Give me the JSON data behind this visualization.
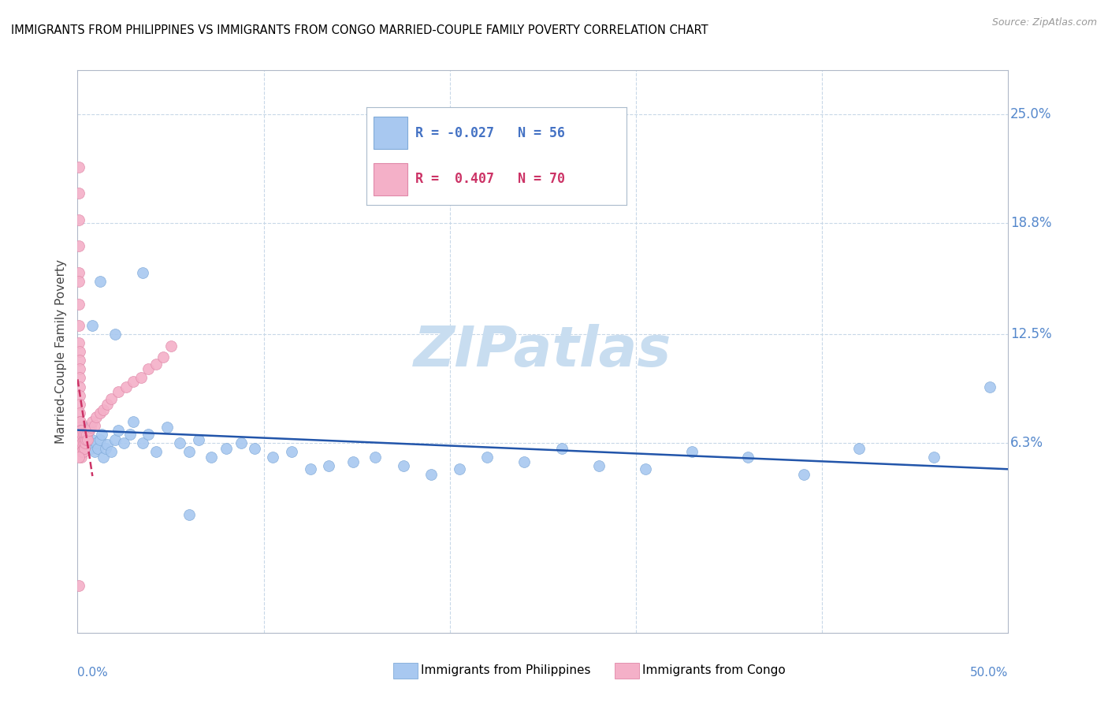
{
  "title": "IMMIGRANTS FROM PHILIPPINES VS IMMIGRANTS FROM CONGO MARRIED-COUPLE FAMILY POVERTY CORRELATION CHART",
  "source": "Source: ZipAtlas.com",
  "ylabel": "Married-Couple Family Poverty",
  "ytick_values": [
    0.063,
    0.125,
    0.188,
    0.25
  ],
  "ytick_labels": [
    "6.3%",
    "12.5%",
    "18.8%",
    "25.0%"
  ],
  "xlim": [
    0.0,
    0.5
  ],
  "ylim": [
    -0.045,
    0.275
  ],
  "philippines_color": "#a8c8f0",
  "philippines_edge": "#80aad8",
  "congo_color": "#f4b0c8",
  "congo_edge": "#e088a8",
  "trend_phil_color": "#2255aa",
  "trend_congo_color": "#cc3366",
  "grid_color": "#c8d8e8",
  "watermark_color": "#c8ddf0",
  "right_label_color": "#5588cc",
  "source_color": "#999999",
  "legend_phil_text_color": "#4472c4",
  "legend_congo_text_color": "#cc3366",
  "phil_R": -0.027,
  "phil_N": 56,
  "congo_R": 0.407,
  "congo_N": 70,
  "phil_x": [
    0.003,
    0.004,
    0.005,
    0.006,
    0.007,
    0.008,
    0.009,
    0.01,
    0.011,
    0.012,
    0.013,
    0.014,
    0.015,
    0.016,
    0.018,
    0.02,
    0.022,
    0.025,
    0.028,
    0.03,
    0.035,
    0.038,
    0.042,
    0.048,
    0.055,
    0.06,
    0.065,
    0.072,
    0.08,
    0.088,
    0.095,
    0.105,
    0.115,
    0.125,
    0.135,
    0.148,
    0.16,
    0.175,
    0.19,
    0.205,
    0.22,
    0.24,
    0.26,
    0.28,
    0.305,
    0.33,
    0.36,
    0.39,
    0.42,
    0.46,
    0.49,
    0.008,
    0.012,
    0.02,
    0.035,
    0.06
  ],
  "phil_y": [
    0.068,
    0.072,
    0.065,
    0.07,
    0.06,
    0.065,
    0.058,
    0.063,
    0.06,
    0.065,
    0.068,
    0.055,
    0.06,
    0.062,
    0.058,
    0.065,
    0.07,
    0.063,
    0.068,
    0.075,
    0.063,
    0.068,
    0.058,
    0.072,
    0.063,
    0.058,
    0.065,
    0.055,
    0.06,
    0.063,
    0.06,
    0.055,
    0.058,
    0.048,
    0.05,
    0.052,
    0.055,
    0.05,
    0.045,
    0.048,
    0.055,
    0.052,
    0.06,
    0.05,
    0.048,
    0.058,
    0.055,
    0.045,
    0.06,
    0.055,
    0.095,
    0.13,
    0.155,
    0.125,
    0.16,
    0.022
  ],
  "congo_x": [
    0.0005,
    0.0005,
    0.0005,
    0.0005,
    0.0005,
    0.0008,
    0.0008,
    0.0008,
    0.0008,
    0.001,
    0.001,
    0.001,
    0.001,
    0.001,
    0.001,
    0.001,
    0.001,
    0.001,
    0.001,
    0.001,
    0.001,
    0.001,
    0.0012,
    0.0012,
    0.0012,
    0.0012,
    0.0015,
    0.0015,
    0.0015,
    0.0015,
    0.0018,
    0.0018,
    0.0018,
    0.002,
    0.002,
    0.002,
    0.002,
    0.002,
    0.0025,
    0.0025,
    0.0025,
    0.003,
    0.003,
    0.003,
    0.0035,
    0.0035,
    0.004,
    0.004,
    0.0045,
    0.005,
    0.0055,
    0.006,
    0.007,
    0.008,
    0.009,
    0.01,
    0.012,
    0.014,
    0.016,
    0.018,
    0.022,
    0.026,
    0.03,
    0.034,
    0.038,
    0.042,
    0.046,
    0.05,
    0.0005,
    0.0005
  ],
  "congo_y": [
    0.22,
    0.205,
    0.19,
    0.175,
    0.16,
    0.155,
    0.142,
    0.13,
    0.12,
    0.115,
    0.11,
    0.105,
    0.1,
    0.095,
    0.09,
    0.085,
    0.08,
    0.075,
    0.072,
    0.068,
    0.065,
    0.06,
    0.072,
    0.068,
    0.065,
    0.06,
    0.075,
    0.07,
    0.065,
    0.06,
    0.068,
    0.063,
    0.058,
    0.07,
    0.065,
    0.062,
    0.058,
    0.055,
    0.068,
    0.063,
    0.058,
    0.068,
    0.063,
    0.058,
    0.065,
    0.06,
    0.068,
    0.063,
    0.065,
    0.068,
    0.065,
    0.07,
    0.072,
    0.075,
    0.073,
    0.078,
    0.08,
    0.082,
    0.085,
    0.088,
    0.092,
    0.095,
    0.098,
    0.1,
    0.105,
    0.108,
    0.112,
    0.118,
    0.055,
    -0.018
  ],
  "congo_trend_x": [
    0.0,
    0.008
  ],
  "phil_trend_x": [
    0.0,
    0.5
  ]
}
